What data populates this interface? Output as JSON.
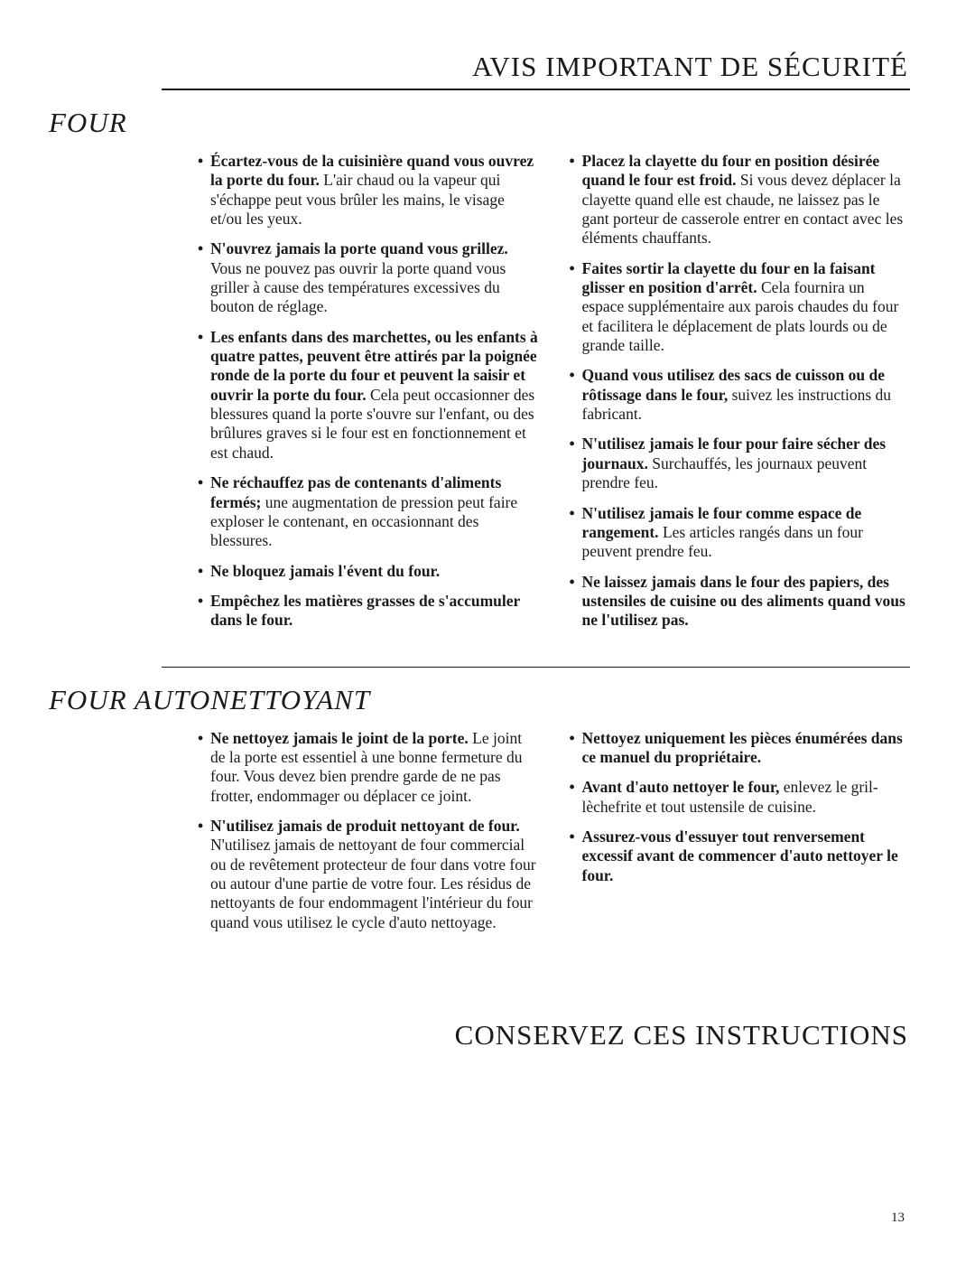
{
  "page_title": "AVIS IMPORTANT DE SÉCURITÉ",
  "footer_title": "CONSERVEZ CES INSTRUCTIONS",
  "page_number": "13",
  "sections": [
    {
      "title": "FOUR",
      "left": [
        {
          "bold": "Écartez-vous de la cuisinière quand vous ouvrez la porte du four.",
          "rest": " L'air chaud ou la vapeur qui s'échappe peut vous brûler les mains, le visage et/ou les yeux."
        },
        {
          "bold": "N'ouvrez jamais la porte quand vous grillez.",
          "rest": " Vous ne pouvez pas ouvrir la porte quand vous griller à cause des températures excessives du bouton de réglage."
        },
        {
          "bold": "Les enfants dans des marchettes, ou les enfants à quatre pattes, peuvent être attirés par la poignée ronde de la porte du four et peuvent la saisir et ouvrir la porte du four.",
          "rest": " Cela peut occasionner des blessures quand la porte s'ouvre sur l'enfant, ou des brûlures graves si le four est en fonctionnement et est chaud."
        },
        {
          "bold": "Ne réchauffez pas de contenants d'aliments fermés;",
          "rest": " une augmentation de pression peut faire exploser le contenant, en occasionnant des blessures."
        },
        {
          "bold": "Ne bloquez jamais l'évent du four.",
          "rest": ""
        },
        {
          "bold": "Empêchez les matières grasses de s'accumuler dans le four.",
          "rest": ""
        }
      ],
      "right": [
        {
          "bold": "Placez la clayette du four en position désirée quand le four est froid.",
          "rest": " Si vous devez déplacer la clayette quand elle est chaude, ne laissez pas le gant porteur de casserole entrer en contact avec les éléments chauffants."
        },
        {
          "bold": "Faites sortir la clayette du four en la faisant glisser en position d'arrêt.",
          "rest": " Cela fournira un espace supplémentaire aux parois chaudes du four et facilitera le déplacement de plats lourds ou de grande taille."
        },
        {
          "bold": "Quand vous utilisez des sacs de cuisson ou de rôtissage dans le four,",
          "rest": " suivez les instructions du fabricant."
        },
        {
          "bold": "N'utilisez jamais le four pour faire sécher des journaux.",
          "rest": " Surchauffés, les journaux peuvent prendre feu."
        },
        {
          "bold": "N'utilisez jamais le four comme espace de rangement.",
          "rest": " Les articles rangés dans un four peuvent prendre feu."
        },
        {
          "bold": "Ne laissez jamais dans le four des papiers, des ustensiles de cuisine ou des aliments quand vous ne l'utilisez pas.",
          "rest": ""
        }
      ]
    },
    {
      "title": "FOUR AUTONETTOYANT",
      "left": [
        {
          "bold": "Ne nettoyez jamais le joint de la porte.",
          "rest": " Le joint de la porte est essentiel à une bonne fermeture du four. Vous devez bien prendre garde de ne pas frotter, endommager ou déplacer ce joint."
        },
        {
          "bold": "N'utilisez jamais de produit nettoyant de four.",
          "rest": " N'utilisez jamais de nettoyant de four commercial ou de revêtement protecteur de four dans votre four ou autour d'une partie de votre four. Les résidus de nettoyants de four endommagent l'intérieur du four quand vous utilisez le cycle d'auto nettoyage."
        }
      ],
      "right": [
        {
          "bold": "Nettoyez uniquement les pièces énumérées dans ce manuel du propriétaire.",
          "rest": ""
        },
        {
          "bold": "Avant d'auto nettoyer le four,",
          "rest": " enlevez le gril-lèchefrite et tout ustensile de cuisine."
        },
        {
          "bold": "Assurez-vous d'essuyer tout renversement excessif avant de commencer d'auto nettoyer le four.",
          "rest": ""
        }
      ]
    }
  ]
}
